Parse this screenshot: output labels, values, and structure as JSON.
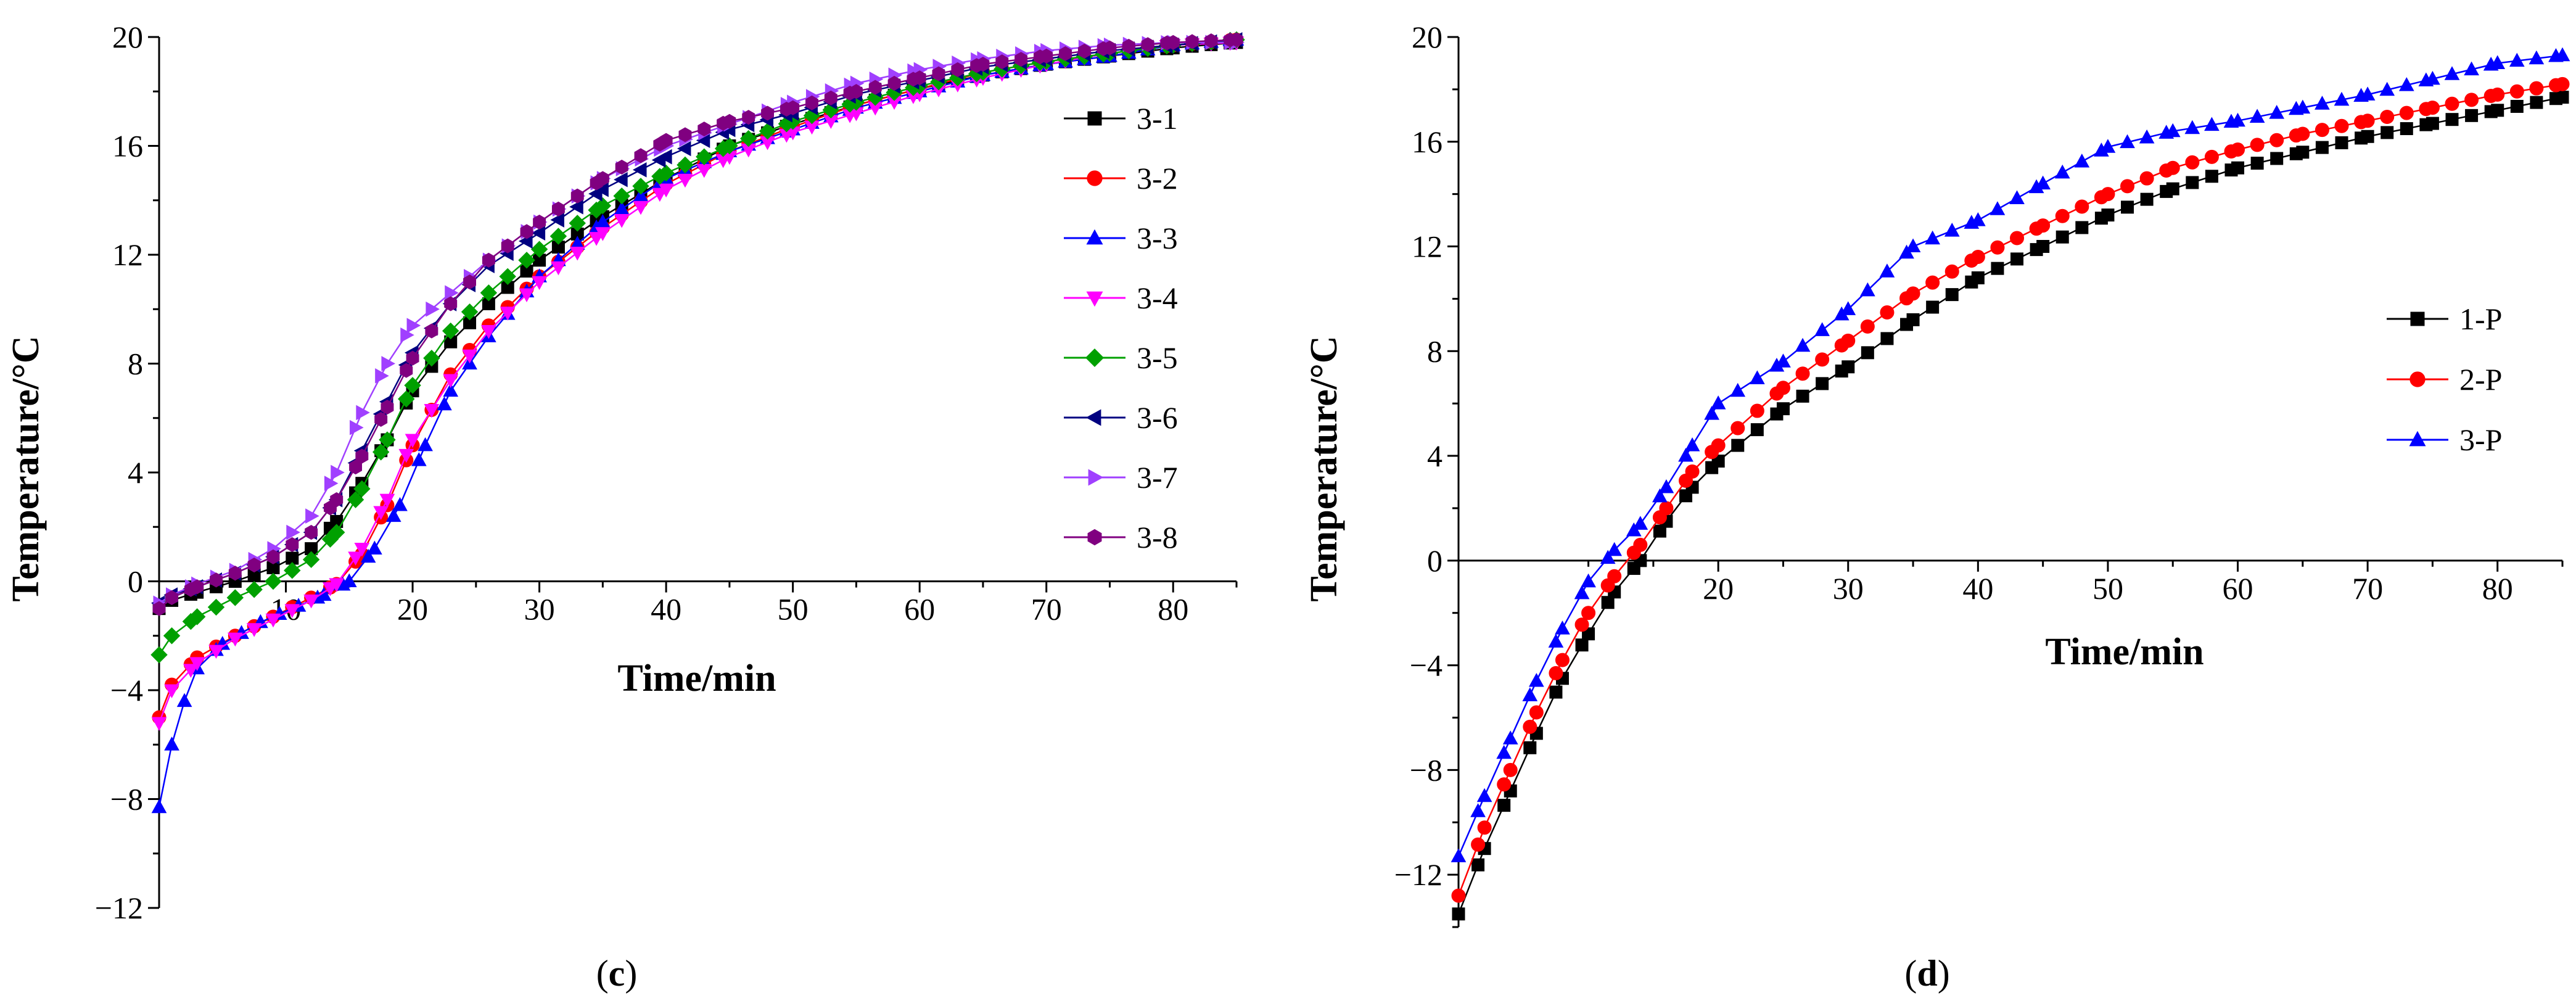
{
  "chart_data": [
    {
      "type": "line",
      "panel_label": "(c)",
      "title": "",
      "xlabel": "Time/min",
      "ylabel": "Temperature/°C",
      "xlim": [
        0,
        85
      ],
      "ylim": [
        -12,
        20
      ],
      "xticks": [
        10,
        20,
        30,
        40,
        50,
        60,
        70,
        80
      ],
      "yticks": [
        -12,
        -8,
        -4,
        0,
        4,
        8,
        12,
        16,
        20
      ],
      "grid": false,
      "legend_position": "right",
      "series": [
        {
          "name": "3-1",
          "color": "#000000",
          "marker": "square",
          "x": [
            0,
            1,
            3,
            6,
            9,
            12,
            14,
            16,
            18,
            20,
            23,
            26,
            30,
            35,
            40,
            45,
            50,
            55,
            60,
            65,
            70,
            75,
            80,
            85
          ],
          "y": [
            -1.0,
            -0.7,
            -0.4,
            0.0,
            0.5,
            1.2,
            2.2,
            3.6,
            5.2,
            7.0,
            8.8,
            10.2,
            11.8,
            13.4,
            14.8,
            16.0,
            16.8,
            17.5,
            18.1,
            18.6,
            19.0,
            19.3,
            19.6,
            19.8
          ]
        },
        {
          "name": "3-2",
          "color": "#ff0000",
          "marker": "circle",
          "x": [
            0,
            1,
            3,
            6,
            9,
            12,
            14,
            16,
            18,
            20,
            23,
            26,
            30,
            35,
            40,
            45,
            50,
            55,
            60,
            65,
            70,
            75,
            80,
            85
          ],
          "y": [
            -5.0,
            -3.8,
            -2.8,
            -2.0,
            -1.3,
            -0.6,
            -0.1,
            1.0,
            2.8,
            5.0,
            7.6,
            9.4,
            11.2,
            13.0,
            14.6,
            15.8,
            16.7,
            17.5,
            18.1,
            18.7,
            19.1,
            19.4,
            19.7,
            19.9
          ]
        },
        {
          "name": "3-3",
          "color": "#0000ff",
          "marker": "triangle-up",
          "x": [
            0,
            1,
            2,
            3,
            5,
            8,
            11,
            13,
            15,
            17,
            19,
            21,
            23,
            26,
            30,
            35,
            40,
            45,
            50,
            55,
            60,
            65,
            70,
            75,
            80,
            85
          ],
          "y": [
            -8.3,
            -6.0,
            -4.4,
            -3.2,
            -2.3,
            -1.5,
            -0.9,
            -0.5,
            0.0,
            1.2,
            2.8,
            5.0,
            7.0,
            9.0,
            11.2,
            13.2,
            14.8,
            15.8,
            16.6,
            17.4,
            18.0,
            18.6,
            19.0,
            19.3,
            19.7,
            19.9
          ]
        },
        {
          "name": "3-4",
          "color": "#ff00ff",
          "marker": "triangle-down",
          "x": [
            0,
            1,
            3,
            6,
            9,
            12,
            14,
            16,
            18,
            20,
            23,
            26,
            30,
            35,
            40,
            45,
            50,
            55,
            60,
            65,
            70,
            75,
            80,
            85
          ],
          "y": [
            -5.2,
            -4.0,
            -3.0,
            -2.1,
            -1.4,
            -0.7,
            -0.1,
            1.2,
            3.0,
            5.2,
            7.4,
            9.2,
            11.0,
            12.8,
            14.4,
            15.6,
            16.5,
            17.2,
            17.9,
            18.5,
            19.0,
            19.4,
            19.7,
            19.8
          ]
        },
        {
          "name": "3-5",
          "color": "#00a000",
          "marker": "diamond",
          "x": [
            0,
            1,
            3,
            6,
            9,
            12,
            14,
            16,
            18,
            20,
            23,
            26,
            30,
            35,
            40,
            45,
            50,
            55,
            60,
            65,
            70,
            75,
            80,
            85
          ],
          "y": [
            -2.7,
            -2.0,
            -1.3,
            -0.6,
            0.0,
            0.8,
            1.8,
            3.4,
            5.2,
            7.2,
            9.2,
            10.6,
            12.2,
            13.8,
            15.0,
            16.0,
            16.9,
            17.6,
            18.2,
            18.7,
            19.1,
            19.4,
            19.7,
            19.9
          ]
        },
        {
          "name": "3-6",
          "color": "#000080",
          "marker": "triangle-left",
          "x": [
            0,
            1,
            3,
            6,
            9,
            12,
            14,
            16,
            18,
            20,
            23,
            26,
            30,
            35,
            40,
            45,
            50,
            55,
            60,
            65,
            70,
            75,
            80,
            85
          ],
          "y": [
            -0.8,
            -0.5,
            -0.2,
            0.3,
            0.9,
            1.8,
            3.0,
            4.8,
            6.6,
            8.4,
            10.2,
            11.6,
            12.8,
            14.4,
            15.6,
            16.6,
            17.2,
            17.9,
            18.4,
            18.9,
            19.2,
            19.5,
            19.7,
            19.9
          ]
        },
        {
          "name": "3-7",
          "color": "#a040ff",
          "marker": "triangle-right",
          "x": [
            0,
            1,
            3,
            6,
            9,
            12,
            14,
            16,
            18,
            20,
            23,
            26,
            30,
            35,
            40,
            45,
            50,
            55,
            60,
            65,
            70,
            75,
            80,
            85
          ],
          "y": [
            -0.8,
            -0.5,
            -0.1,
            0.4,
            1.2,
            2.4,
            4.0,
            6.2,
            8.0,
            9.4,
            10.6,
            11.8,
            13.2,
            14.8,
            16.0,
            16.8,
            17.6,
            18.3,
            18.8,
            19.2,
            19.5,
            19.7,
            19.8,
            19.8
          ]
        },
        {
          "name": "3-8",
          "color": "#800080",
          "marker": "hexagon",
          "x": [
            0,
            1,
            3,
            6,
            9,
            12,
            14,
            16,
            18,
            20,
            23,
            26,
            30,
            35,
            40,
            45,
            50,
            55,
            60,
            65,
            70,
            75,
            80,
            85
          ],
          "y": [
            -1.0,
            -0.6,
            -0.2,
            0.3,
            0.9,
            1.8,
            3.0,
            4.6,
            6.4,
            8.2,
            10.2,
            11.8,
            13.2,
            14.8,
            16.2,
            16.9,
            17.4,
            18.0,
            18.5,
            19.0,
            19.3,
            19.6,
            19.8,
            19.9
          ]
        }
      ]
    },
    {
      "type": "line",
      "panel_label": "(d)",
      "title": "",
      "xlabel": "Time/min",
      "ylabel": "Temperature/°C",
      "xlim": [
        0,
        85
      ],
      "ylim": [
        -14,
        20
      ],
      "xticks": [
        20,
        30,
        40,
        50,
        60,
        70,
        80
      ],
      "yticks": [
        -12,
        -8,
        -4,
        0,
        4,
        8,
        12,
        16,
        20
      ],
      "grid": false,
      "legend_position": "right",
      "series": [
        {
          "name": "1-P",
          "color": "#000000",
          "marker": "square",
          "x": [
            0,
            2,
            4,
            6,
            8,
            10,
            12,
            14,
            16,
            18,
            20,
            25,
            30,
            35,
            40,
            45,
            50,
            55,
            60,
            65,
            70,
            75,
            80,
            85
          ],
          "y": [
            -13.5,
            -11.0,
            -8.8,
            -6.6,
            -4.5,
            -2.8,
            -1.2,
            0.0,
            1.5,
            2.8,
            3.8,
            5.8,
            7.4,
            9.2,
            10.8,
            12.0,
            13.2,
            14.2,
            15.0,
            15.6,
            16.2,
            16.7,
            17.2,
            17.7
          ]
        },
        {
          "name": "2-P",
          "color": "#ff0000",
          "marker": "circle",
          "x": [
            0,
            2,
            4,
            6,
            8,
            10,
            12,
            14,
            16,
            18,
            20,
            25,
            30,
            35,
            40,
            45,
            50,
            55,
            60,
            65,
            70,
            75,
            80,
            85
          ],
          "y": [
            -12.8,
            -10.2,
            -8.0,
            -5.8,
            -3.8,
            -2.0,
            -0.6,
            0.6,
            2.0,
            3.4,
            4.4,
            6.6,
            8.4,
            10.2,
            11.6,
            12.8,
            14.0,
            15.0,
            15.7,
            16.3,
            16.8,
            17.3,
            17.8,
            18.2
          ]
        },
        {
          "name": "3-P",
          "color": "#0000ff",
          "marker": "triangle-up",
          "x": [
            0,
            2,
            4,
            6,
            8,
            10,
            12,
            14,
            16,
            18,
            20,
            25,
            30,
            35,
            40,
            45,
            50,
            55,
            60,
            65,
            70,
            75,
            80,
            85
          ],
          "y": [
            -11.3,
            -9.0,
            -6.8,
            -4.6,
            -2.6,
            -0.8,
            0.4,
            1.4,
            2.8,
            4.4,
            6.0,
            7.6,
            9.6,
            12.0,
            13.0,
            14.4,
            15.8,
            16.4,
            16.8,
            17.3,
            17.8,
            18.4,
            19.0,
            19.3
          ]
        }
      ]
    }
  ]
}
